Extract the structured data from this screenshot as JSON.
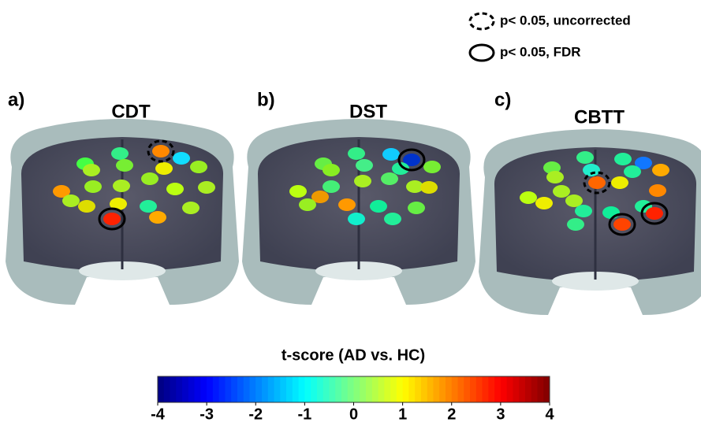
{
  "legend": {
    "items": [
      "p< 0.05, uncorrected",
      "p< 0.05, FDR"
    ]
  },
  "panels": [
    {
      "label": "a)",
      "title": "CDT"
    },
    {
      "label": "b)",
      "title": "DST"
    },
    {
      "label": "c)",
      "title": "CBTT"
    }
  ],
  "colorbar": {
    "title": "t-score (AD vs. HC)",
    "lim": [
      -4,
      4
    ],
    "ticks": [
      -4,
      -3,
      -2,
      -1,
      0,
      1,
      2,
      3,
      4
    ],
    "colormap": "jet"
  }
}
